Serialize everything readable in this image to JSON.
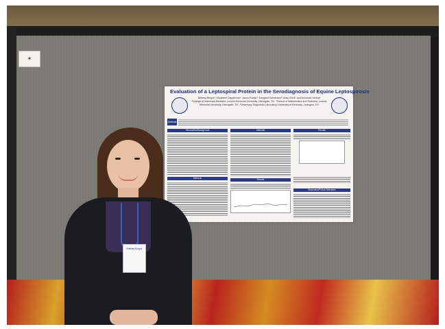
{
  "poster": {
    "title": "Evaluation of a Leptospiral Protein in the Serodiagnosis of Equine Leptospirosis",
    "authors": "Brittney Breyer¹, Elizabeth Cappleman¹, Jason Fowler¹, Margaret Stevenson², Anbu Emil², and Ashutosh Verma¹",
    "affiliations": "¹College of Veterinary Medicine, Lincoln Memorial University, Harrogate, TN · ²School of Mathematics and Sciences, Lincoln Memorial University, Harrogate, TN · ³Veterinary Diagnostic Laboratory, University of Kentucky, Lexington, KY",
    "abstract_label": "Abstract",
    "sections": {
      "introduction": "Introduction/Background",
      "methods": "Methods",
      "results": "Results",
      "conclusion": "Discussion/Future Directions"
    }
  },
  "badge": {
    "name": "Brittney Breyer"
  }
}
